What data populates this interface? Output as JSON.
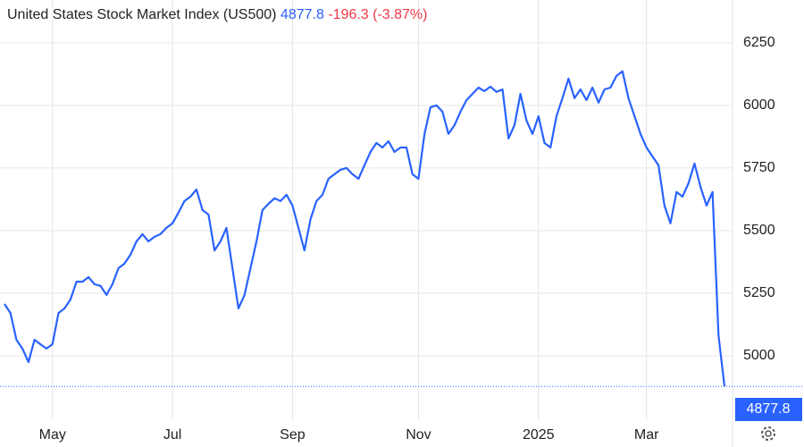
{
  "chart_data": {
    "type": "line",
    "title": "United States Stock Market Index (US500)",
    "change_label": "-196.3 (-3.87%)",
    "color": "#2962ff",
    "categories": [
      null,
      null,
      null,
      null,
      null,
      null,
      null,
      null,
      "May",
      null,
      null,
      null,
      null,
      null,
      null,
      null,
      null,
      null,
      null,
      null,
      null,
      null,
      null,
      null,
      null,
      null,
      null,
      null,
      "Jul",
      null,
      null,
      null,
      null,
      null,
      null,
      null,
      null,
      null,
      null,
      null,
      null,
      null,
      null,
      null,
      null,
      null,
      null,
      null,
      "Sep",
      null,
      null,
      null,
      null,
      null,
      null,
      null,
      null,
      null,
      null,
      null,
      null,
      null,
      null,
      null,
      null,
      null,
      null,
      null,
      null,
      "Nov",
      null,
      null,
      null,
      null,
      null,
      null,
      null,
      null,
      null,
      null,
      null,
      null,
      null,
      null,
      null,
      null,
      null,
      null,
      null,
      "2025",
      null,
      null,
      null,
      null,
      null,
      null,
      null,
      null,
      null,
      null,
      null,
      null,
      null,
      null,
      null,
      null,
      null,
      "Mar",
      null,
      null,
      null,
      null,
      null,
      null,
      null,
      null,
      null,
      null,
      null,
      null,
      null
    ],
    "values": [
      5207,
      5171,
      5064,
      5029,
      4975,
      5064,
      5046,
      5029,
      5046,
      5171,
      5189,
      5225,
      5296,
      5296,
      5314,
      5286,
      5279,
      5243,
      5286,
      5350,
      5368,
      5404,
      5457,
      5486,
      5457,
      5475,
      5486,
      5511,
      5529,
      5572,
      5618,
      5636,
      5664,
      5582,
      5564,
      5421,
      5457,
      5511,
      5350,
      5189,
      5243,
      5350,
      5457,
      5582,
      5607,
      5629,
      5618,
      5643,
      5600,
      5511,
      5421,
      5546,
      5618,
      5643,
      5707,
      5725,
      5743,
      5750,
      5725,
      5707,
      5761,
      5814,
      5850,
      5832,
      5857,
      5814,
      5832,
      5832,
      5725,
      5707,
      5886,
      5993,
      6000,
      5975,
      5886,
      5921,
      5975,
      6021,
      6046,
      6071,
      6057,
      6075,
      6054,
      6064,
      5868,
      5921,
      6046,
      5939,
      5886,
      5957,
      5850,
      5832,
      5957,
      6029,
      6107,
      6029,
      6064,
      6021,
      6071,
      6011,
      6064,
      6071,
      6118,
      6136,
      6029,
      5957,
      5886,
      5832,
      5796,
      5761,
      5600,
      5529,
      5654,
      5636,
      5689,
      5768,
      5675,
      5600,
      5654,
      5082,
      4877.8
    ],
    "ylim": [
      4750,
      6421
    ],
    "yticks": [
      5000,
      5250,
      5500,
      5750,
      6000,
      6250
    ],
    "grid": true
  }
}
